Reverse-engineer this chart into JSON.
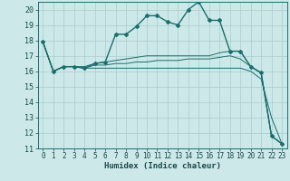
{
  "title": "",
  "xlabel": "Humidex (Indice chaleur)",
  "ylabel": "",
  "background_color": "#cce8e8",
  "grid_color": "#aacccc",
  "line_color": "#1a6e6e",
  "xlim": [
    -0.5,
    23.5
  ],
  "ylim": [
    11,
    20.5
  ],
  "yticks": [
    11,
    12,
    13,
    14,
    15,
    16,
    17,
    18,
    19,
    20
  ],
  "xticks": [
    0,
    1,
    2,
    3,
    4,
    5,
    6,
    7,
    8,
    9,
    10,
    11,
    12,
    13,
    14,
    15,
    16,
    17,
    18,
    19,
    20,
    21,
    22,
    23
  ],
  "series": [
    {
      "x": [
        0,
        1,
        2,
        3,
        4,
        5,
        6,
        7,
        8,
        9,
        10,
        11,
        12,
        13,
        14,
        15,
        16,
        17,
        18,
        19,
        20,
        21,
        22,
        23
      ],
      "y": [
        17.9,
        16.0,
        16.3,
        16.3,
        16.2,
        16.5,
        16.6,
        18.4,
        18.4,
        18.9,
        19.6,
        19.6,
        19.2,
        19.0,
        20.0,
        20.5,
        19.3,
        19.3,
        17.3,
        17.3,
        16.3,
        15.9,
        11.8,
        11.3
      ],
      "marker": "D",
      "markersize": 2.0,
      "linewidth": 1.0,
      "has_marker": true
    },
    {
      "x": [
        0,
        1,
        2,
        3,
        4,
        5,
        6,
        7,
        8,
        9,
        10,
        11,
        12,
        13,
        14,
        15,
        16,
        17,
        18,
        19,
        20,
        21,
        22,
        23
      ],
      "y": [
        17.9,
        16.0,
        16.3,
        16.3,
        16.3,
        16.5,
        16.6,
        16.7,
        16.8,
        16.9,
        17.0,
        17.0,
        17.0,
        17.0,
        17.0,
        17.0,
        17.0,
        17.2,
        17.3,
        17.3,
        16.3,
        15.9,
        11.8,
        11.3
      ],
      "marker": null,
      "markersize": 0,
      "linewidth": 0.7,
      "has_marker": false
    },
    {
      "x": [
        0,
        1,
        2,
        3,
        4,
        5,
        6,
        7,
        8,
        9,
        10,
        11,
        12,
        13,
        14,
        15,
        16,
        17,
        18,
        19,
        20,
        21,
        22,
        23
      ],
      "y": [
        17.9,
        16.0,
        16.3,
        16.3,
        16.2,
        16.4,
        16.4,
        16.5,
        16.5,
        16.6,
        16.6,
        16.7,
        16.7,
        16.7,
        16.8,
        16.8,
        16.8,
        16.9,
        17.0,
        16.8,
        16.3,
        15.9,
        11.8,
        11.3
      ],
      "marker": null,
      "markersize": 0,
      "linewidth": 0.7,
      "has_marker": false
    },
    {
      "x": [
        0,
        1,
        2,
        3,
        4,
        5,
        6,
        7,
        8,
        9,
        10,
        11,
        12,
        13,
        14,
        15,
        16,
        17,
        18,
        19,
        20,
        21,
        22,
        23
      ],
      "y": [
        17.9,
        16.0,
        16.3,
        16.3,
        16.2,
        16.2,
        16.2,
        16.2,
        16.2,
        16.2,
        16.2,
        16.2,
        16.2,
        16.2,
        16.2,
        16.2,
        16.2,
        16.2,
        16.2,
        16.2,
        16.0,
        15.5,
        13.0,
        11.3
      ],
      "marker": null,
      "markersize": 0,
      "linewidth": 0.7,
      "has_marker": false
    }
  ]
}
